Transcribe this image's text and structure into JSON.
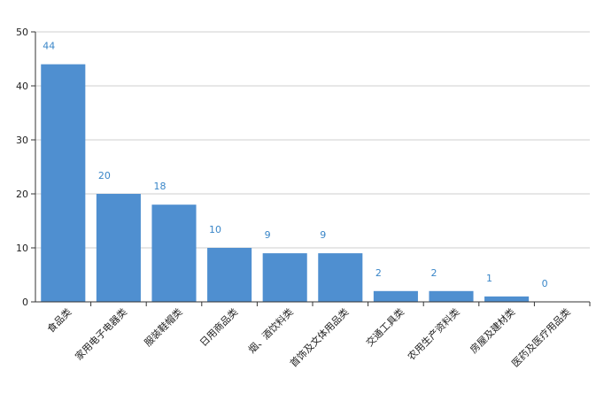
{
  "chart_data": {
    "type": "bar",
    "title": "",
    "xlabel": "",
    "ylabel": "",
    "categories": [
      "食品类",
      "家用电子电器类",
      "服装鞋帽类",
      "日用商品类",
      "烟、酒饮料类",
      "首饰及文体用品类",
      "交通工具类",
      "农用生产资料类",
      "房屋及建材类",
      "医药及医疗用品类"
    ],
    "values": [
      44,
      20,
      18,
      10,
      9,
      9,
      2,
      2,
      1,
      0
    ],
    "ylim": [
      0,
      50
    ],
    "yticks": [
      "0",
      "10",
      "20",
      "30",
      "40",
      "50"
    ],
    "grid": true,
    "bar_color": "#4f8fd0",
    "label_color": "#3a86c8"
  }
}
